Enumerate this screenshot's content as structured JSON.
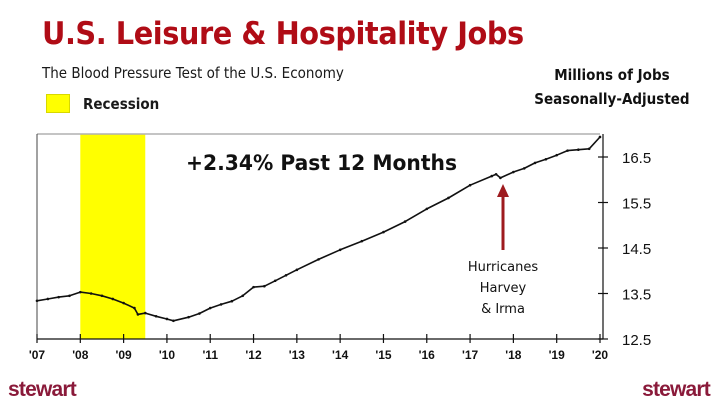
{
  "header": {
    "title": "U.S. Leisure & Hospitality Jobs",
    "subtitle": "The Blood Pressure Test of the U.S. Economy",
    "legend_label": "Recession",
    "units_line1": "Millions of Jobs",
    "units_line2": "Seasonally-Adjusted"
  },
  "annotations": {
    "headline": "+2.34% Past 12 Months",
    "hurricane_line1": "Hurricanes",
    "hurricane_line2": "Harvey",
    "hurricane_line3": "& Irma"
  },
  "footer": {
    "logo_left": "stewart",
    "logo_right": "stewart"
  },
  "colors": {
    "title": "#b00c16",
    "recession": "#ffff00",
    "arrow": "#9e1b1f",
    "line": "#111111",
    "logo": "#8a1a3a"
  },
  "chart_data": {
    "type": "line",
    "title": "U.S. Leisure & Hospitality Jobs",
    "subtitle": "The Blood Pressure Test of the U.S. Economy",
    "ylabel": "Millions of Jobs Seasonally-Adjusted",
    "xlabel": "",
    "y_axis_position": "right",
    "ylim": [
      12.5,
      17.0
    ],
    "yticks": [
      12.5,
      13.5,
      14.5,
      15.5,
      16.5
    ],
    "xticks": [
      "'07",
      "'08",
      "'09",
      "'10",
      "'11",
      "'12",
      "'13",
      "'14",
      "'15",
      "'16",
      "'17",
      "'18",
      "'19",
      "'20"
    ],
    "xlim": [
      2007.0,
      2020.0
    ],
    "grid": false,
    "legend": [
      {
        "label": "Recession",
        "color": "#ffff00"
      }
    ],
    "shaded_regions": [
      {
        "label": "Recession",
        "start": 2008.0,
        "end": 2009.5
      }
    ],
    "series": [
      {
        "name": "Leisure & Hospitality Jobs (millions)",
        "x": [
          2007.0,
          2007.25,
          2007.5,
          2007.75,
          2008.0,
          2008.25,
          2008.5,
          2008.75,
          2009.0,
          2009.25,
          2009.33,
          2009.5,
          2009.75,
          2010.0,
          2010.15,
          2010.5,
          2010.75,
          2011.0,
          2011.25,
          2011.5,
          2011.75,
          2012.0,
          2012.25,
          2012.5,
          2012.75,
          2013.0,
          2013.5,
          2014.0,
          2014.5,
          2015.0,
          2015.5,
          2016.0,
          2016.5,
          2017.0,
          2017.5,
          2017.6,
          2017.7,
          2018.0,
          2018.25,
          2018.5,
          2018.75,
          2019.0,
          2019.25,
          2019.5,
          2019.75,
          2020.0
        ],
        "values": [
          13.34,
          13.38,
          13.42,
          13.45,
          13.53,
          13.5,
          13.45,
          13.38,
          13.29,
          13.18,
          13.04,
          13.07,
          13.0,
          12.94,
          12.9,
          12.98,
          13.06,
          13.18,
          13.26,
          13.33,
          13.45,
          13.64,
          13.66,
          13.78,
          13.9,
          14.02,
          14.25,
          14.46,
          14.65,
          14.85,
          15.08,
          15.36,
          15.6,
          15.88,
          16.08,
          16.12,
          16.04,
          16.17,
          16.25,
          16.37,
          16.45,
          16.54,
          16.64,
          16.66,
          16.68,
          16.94
        ]
      }
    ],
    "annotations": [
      {
        "text": "+2.34% Past 12 Months",
        "type": "headline"
      },
      {
        "text": "Hurricanes Harvey & Irma",
        "x": 2017.7,
        "type": "arrow"
      }
    ]
  }
}
